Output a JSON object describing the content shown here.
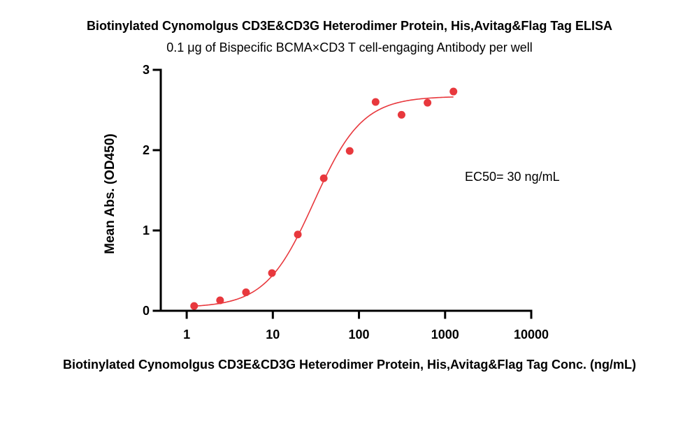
{
  "chart_data": {
    "type": "scatter",
    "title": "Biotinylated Cynomolgus CD3E&CD3G Heterodimer Protein, His,Avitag&Flag Tag ELISA",
    "subtitle": "0.1 μg of Bispecific BCMA×CD3 T cell-engaging Antibody per well",
    "xlabel": "Biotinylated Cynomolgus CD3E&CD3G Heterodimer Protein, His,Avitag&Flag Tag Conc. (ng/mL)",
    "ylabel": "Mean Abs. (OD450)",
    "x_scale": "log",
    "xlim": [
      0.5,
      10000
    ],
    "ylim": [
      0,
      3
    ],
    "x_ticks": [
      1,
      10,
      100,
      1000,
      10000
    ],
    "x_tick_labels": [
      "1",
      "10",
      "100",
      "1000",
      "10000"
    ],
    "y_ticks": [
      0,
      1,
      2,
      3
    ],
    "y_tick_labels": [
      "0",
      "1",
      "2",
      "3"
    ],
    "grid": false,
    "series": [
      {
        "color": "#e8383d",
        "x": [
          1.22,
          2.44,
          4.88,
          9.77,
          19.5,
          39,
          78,
          156,
          312,
          625,
          1250
        ],
        "y": [
          0.06,
          0.13,
          0.23,
          0.47,
          0.95,
          1.65,
          1.99,
          2.6,
          2.44,
          2.59,
          2.73
        ]
      }
    ],
    "fit_curve": {
      "model": "4PL",
      "bottom": 0.04,
      "top": 2.67,
      "ec50": 30,
      "hill": 1.55,
      "color": "#e8383d"
    },
    "annotations": [
      {
        "text": "EC50= 30 ng/mL"
      }
    ]
  }
}
